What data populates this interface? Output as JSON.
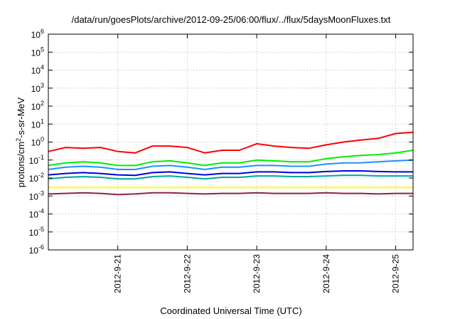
{
  "chart_data": {
    "type": "line",
    "title": "/data/run/goesPlots/archive/2012-09-25/06:00/flux/../flux/5daysMoonFluxes.txt",
    "xlabel": "Coordinated Universal Time (UTC)",
    "ylabel": {
      "base": "protons/cm",
      "sup": "2",
      "rest": "-s-sr-MeV"
    },
    "scale": {
      "y": "log",
      "x": "time"
    },
    "xlim": [
      "2012-09-20T00:00",
      "2012-09-25T06:00"
    ],
    "ylim": [
      1e-06,
      1000000.0
    ],
    "x_ticks": [
      "2012-09-21",
      "2012-09-22",
      "2012-09-23",
      "2012-09-24",
      "2012-09-25"
    ],
    "x_tick_labels": [
      "2012-9-21",
      "2012-9-22",
      "2012-9-23",
      "2012-9-24",
      "2012-9-25"
    ],
    "y_ticks": [
      {
        "base": "10",
        "exp": "-6",
        "value": 1e-06
      },
      {
        "base": "10",
        "exp": "-5",
        "value": 1e-05
      },
      {
        "base": "10",
        "exp": "-4",
        "value": 0.0001
      },
      {
        "base": "10",
        "exp": "-3",
        "value": 0.001
      },
      {
        "base": "10",
        "exp": "-2",
        "value": 0.01
      },
      {
        "base": "10",
        "exp": "-1",
        "value": 0.1
      },
      {
        "base": "10",
        "exp": "0",
        "value": 1
      },
      {
        "base": "10",
        "exp": "1",
        "value": 10
      },
      {
        "base": "10",
        "exp": "2",
        "value": 100
      },
      {
        "base": "10",
        "exp": "3",
        "value": 1000
      },
      {
        "base": "10",
        "exp": "4",
        "value": 10000
      },
      {
        "base": "10",
        "exp": "5",
        "value": 100000
      },
      {
        "base": "10",
        "exp": "6",
        "value": 1000000
      }
    ],
    "grid": true,
    "x": [
      "2012-09-20T00:00",
      "2012-09-20T06:00",
      "2012-09-20T12:00",
      "2012-09-20T18:00",
      "2012-09-21T00:00",
      "2012-09-21T06:00",
      "2012-09-21T12:00",
      "2012-09-21T18:00",
      "2012-09-22T00:00",
      "2012-09-22T06:00",
      "2012-09-22T12:00",
      "2012-09-22T18:00",
      "2012-09-23T00:00",
      "2012-09-23T06:00",
      "2012-09-23T12:00",
      "2012-09-23T18:00",
      "2012-09-24T00:00",
      "2012-09-24T06:00",
      "2012-09-24T12:00",
      "2012-09-24T18:00",
      "2012-09-25T00:00",
      "2012-09-25T06:00"
    ],
    "series": [
      {
        "color": "#ff0000",
        "values": [
          0.3,
          0.5,
          0.45,
          0.5,
          0.3,
          0.25,
          0.6,
          0.6,
          0.5,
          0.25,
          0.35,
          0.35,
          0.8,
          0.6,
          0.5,
          0.45,
          0.7,
          1.0,
          1.3,
          1.6,
          3.0,
          3.5
        ]
      },
      {
        "color": "#00ee00",
        "values": [
          0.05,
          0.07,
          0.08,
          0.07,
          0.05,
          0.05,
          0.08,
          0.09,
          0.07,
          0.05,
          0.07,
          0.07,
          0.1,
          0.09,
          0.08,
          0.08,
          0.12,
          0.15,
          0.18,
          0.2,
          0.25,
          0.35
        ]
      },
      {
        "color": "#1e90ff",
        "values": [
          0.03,
          0.04,
          0.045,
          0.04,
          0.03,
          0.03,
          0.045,
          0.05,
          0.04,
          0.03,
          0.04,
          0.04,
          0.05,
          0.05,
          0.045,
          0.045,
          0.06,
          0.07,
          0.07,
          0.08,
          0.09,
          0.1
        ]
      },
      {
        "color": "#0000dd",
        "values": [
          0.015,
          0.018,
          0.02,
          0.018,
          0.015,
          0.014,
          0.02,
          0.022,
          0.018,
          0.015,
          0.018,
          0.018,
          0.022,
          0.022,
          0.02,
          0.02,
          0.023,
          0.025,
          0.025,
          0.023,
          0.022,
          0.022
        ]
      },
      {
        "color": "#00aa9a",
        "values": [
          0.009,
          0.011,
          0.012,
          0.011,
          0.009,
          0.009,
          0.012,
          0.013,
          0.011,
          0.009,
          0.011,
          0.011,
          0.013,
          0.013,
          0.012,
          0.012,
          0.013,
          0.014,
          0.014,
          0.013,
          0.013,
          0.013
        ]
      },
      {
        "color": "#ffff00",
        "values": [
          0.003,
          0.003,
          0.003,
          0.003,
          0.003,
          0.003,
          0.003,
          0.003,
          0.003,
          0.003,
          0.003,
          0.003,
          0.003,
          0.003,
          0.003,
          0.003,
          0.003,
          0.003,
          0.003,
          0.003,
          0.003,
          0.003
        ]
      },
      {
        "color": "#8b2252",
        "values": [
          0.0013,
          0.0014,
          0.0015,
          0.0014,
          0.0012,
          0.0013,
          0.0015,
          0.0015,
          0.0014,
          0.0013,
          0.0014,
          0.0014,
          0.0015,
          0.0014,
          0.0014,
          0.0014,
          0.0015,
          0.0014,
          0.0014,
          0.0013,
          0.0014,
          0.0014
        ]
      }
    ]
  }
}
